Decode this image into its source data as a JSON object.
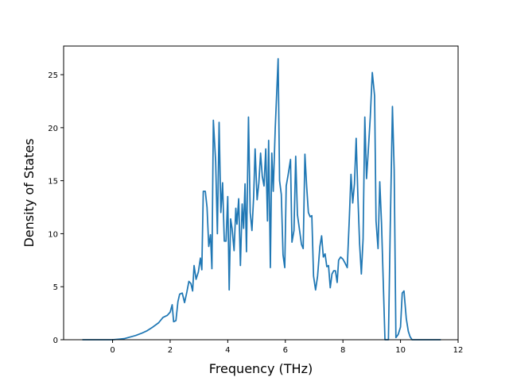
{
  "chart_data": {
    "type": "line",
    "title": "",
    "xlabel": "Frequency (THz)",
    "ylabel": "Density of States",
    "xlim": [
      -1.7,
      12
    ],
    "ylim": [
      0,
      27.7
    ],
    "xticks": [
      0,
      2,
      4,
      6,
      8,
      10,
      12
    ],
    "yticks": [
      0,
      5,
      10,
      15,
      20,
      25
    ],
    "grid": false,
    "legend": "none",
    "series": [
      {
        "color": "#1f77b4",
        "points": [
          [
            -1.05,
            0
          ],
          [
            -0.5,
            0
          ],
          [
            0,
            0
          ],
          [
            0.2,
            0.05
          ],
          [
            0.4,
            0.1
          ],
          [
            0.6,
            0.25
          ],
          [
            0.8,
            0.4
          ],
          [
            1.0,
            0.6
          ],
          [
            1.2,
            0.85
          ],
          [
            1.4,
            1.2
          ],
          [
            1.6,
            1.6
          ],
          [
            1.75,
            2.1
          ],
          [
            1.9,
            2.3
          ],
          [
            2.0,
            2.6
          ],
          [
            2.07,
            3.3
          ],
          [
            2.12,
            1.7
          ],
          [
            2.2,
            1.8
          ],
          [
            2.27,
            3.6
          ],
          [
            2.33,
            4.3
          ],
          [
            2.42,
            4.4
          ],
          [
            2.5,
            3.5
          ],
          [
            2.58,
            4.5
          ],
          [
            2.65,
            5.5
          ],
          [
            2.72,
            5.3
          ],
          [
            2.78,
            4.6
          ],
          [
            2.83,
            7.0
          ],
          [
            2.9,
            5.7
          ],
          [
            2.98,
            6.4
          ],
          [
            3.05,
            7.7
          ],
          [
            3.1,
            6.6
          ],
          [
            3.15,
            14.0
          ],
          [
            3.22,
            14.0
          ],
          [
            3.28,
            12.5
          ],
          [
            3.34,
            8.8
          ],
          [
            3.4,
            9.9
          ],
          [
            3.45,
            6.7
          ],
          [
            3.5,
            20.7
          ],
          [
            3.58,
            16.8
          ],
          [
            3.64,
            10.0
          ],
          [
            3.7,
            20.5
          ],
          [
            3.76,
            12.0
          ],
          [
            3.82,
            14.8
          ],
          [
            3.88,
            9.3
          ],
          [
            3.94,
            9.3
          ],
          [
            4.0,
            13.5
          ],
          [
            4.05,
            4.7
          ],
          [
            4.1,
            11.4
          ],
          [
            4.15,
            10.5
          ],
          [
            4.22,
            8.4
          ],
          [
            4.28,
            12.4
          ],
          [
            4.32,
            10.9
          ],
          [
            4.38,
            13.3
          ],
          [
            4.44,
            7.0
          ],
          [
            4.5,
            12.8
          ],
          [
            4.55,
            10.5
          ],
          [
            4.6,
            14.7
          ],
          [
            4.65,
            8.3
          ],
          [
            4.72,
            21.0
          ],
          [
            4.78,
            12.0
          ],
          [
            4.84,
            10.3
          ],
          [
            4.9,
            13.5
          ],
          [
            4.95,
            18.0
          ],
          [
            5.02,
            13.2
          ],
          [
            5.08,
            14.8
          ],
          [
            5.14,
            17.6
          ],
          [
            5.2,
            15.4
          ],
          [
            5.26,
            14.5
          ],
          [
            5.32,
            18.0
          ],
          [
            5.38,
            11.2
          ],
          [
            5.42,
            18.8
          ],
          [
            5.48,
            6.8
          ],
          [
            5.53,
            17.6
          ],
          [
            5.58,
            14.0
          ],
          [
            5.65,
            20.0
          ],
          [
            5.75,
            26.5
          ],
          [
            5.8,
            15.0
          ],
          [
            5.86,
            13.7
          ],
          [
            5.92,
            8.0
          ],
          [
            5.98,
            6.8
          ],
          [
            6.03,
            14.5
          ],
          [
            6.1,
            15.6
          ],
          [
            6.18,
            17.0
          ],
          [
            6.23,
            9.2
          ],
          [
            6.3,
            10.3
          ],
          [
            6.36,
            17.3
          ],
          [
            6.42,
            11.8
          ],
          [
            6.5,
            10.2
          ],
          [
            6.56,
            9.0
          ],
          [
            6.62,
            8.6
          ],
          [
            6.68,
            17.5
          ],
          [
            6.74,
            14.5
          ],
          [
            6.8,
            12.0
          ],
          [
            6.86,
            11.6
          ],
          [
            6.92,
            11.7
          ],
          [
            6.98,
            6.0
          ],
          [
            7.05,
            4.7
          ],
          [
            7.12,
            6.0
          ],
          [
            7.2,
            8.8
          ],
          [
            7.26,
            9.8
          ],
          [
            7.32,
            7.8
          ],
          [
            7.38,
            8.1
          ],
          [
            7.44,
            6.9
          ],
          [
            7.5,
            7.0
          ],
          [
            7.56,
            4.9
          ],
          [
            7.62,
            6.2
          ],
          [
            7.68,
            6.5
          ],
          [
            7.74,
            6.5
          ],
          [
            7.8,
            5.4
          ],
          [
            7.85,
            7.5
          ],
          [
            7.92,
            7.8
          ],
          [
            8.0,
            7.6
          ],
          [
            8.08,
            7.2
          ],
          [
            8.15,
            6.8
          ],
          [
            8.22,
            11.3
          ],
          [
            8.28,
            15.6
          ],
          [
            8.34,
            12.9
          ],
          [
            8.4,
            14.7
          ],
          [
            8.46,
            19.0
          ],
          [
            8.52,
            13.5
          ],
          [
            8.58,
            9.0
          ],
          [
            8.64,
            6.2
          ],
          [
            8.7,
            9.5
          ],
          [
            8.76,
            21.0
          ],
          [
            8.82,
            15.2
          ],
          [
            8.88,
            17.8
          ],
          [
            8.95,
            21.0
          ],
          [
            9.02,
            25.2
          ],
          [
            9.1,
            23.0
          ],
          [
            9.15,
            11.2
          ],
          [
            9.22,
            8.6
          ],
          [
            9.28,
            14.9
          ],
          [
            9.34,
            11.0
          ],
          [
            9.4,
            5.5
          ],
          [
            9.46,
            0
          ],
          [
            9.52,
            0
          ],
          [
            9.58,
            0
          ],
          [
            9.64,
            10.0
          ],
          [
            9.72,
            22.0
          ],
          [
            9.78,
            16.0
          ],
          [
            9.84,
            0.2
          ],
          [
            9.92,
            0.5
          ],
          [
            10.0,
            1.2
          ],
          [
            10.06,
            4.4
          ],
          [
            10.12,
            4.6
          ],
          [
            10.2,
            2.0
          ],
          [
            10.27,
            0.8
          ],
          [
            10.33,
            0.3
          ],
          [
            10.4,
            0
          ],
          [
            10.6,
            0
          ],
          [
            11.0,
            0
          ],
          [
            11.4,
            0
          ]
        ]
      }
    ]
  }
}
